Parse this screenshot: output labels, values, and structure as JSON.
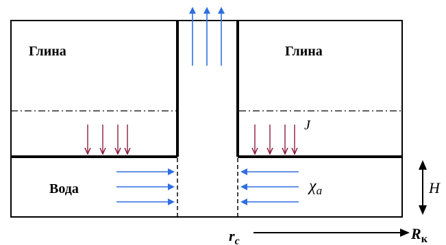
{
  "labels": {
    "clay_left": "Глина",
    "clay_right": "Глина",
    "water": "Вода",
    "flux_j": "J",
    "chi": "χ",
    "chi_sub": "a",
    "height": "H",
    "r_c": "r",
    "r_c_sub": "c",
    "r_k": "R",
    "r_k_sub": "к"
  },
  "colors": {
    "outline": "#000000",
    "blue_arrow": "#2f6fe0",
    "crimson_arrow": "#8b1a3a"
  }
}
